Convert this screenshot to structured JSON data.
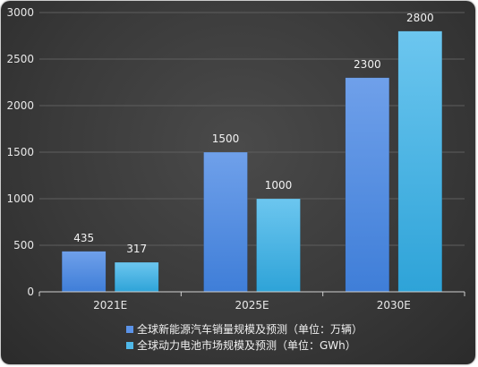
{
  "chart_data": {
    "type": "bar",
    "categories": [
      "2021E",
      "2025E",
      "2030E"
    ],
    "series": [
      {
        "name": "全球新能源汽车销量规模及预测（单位：万辆）",
        "values": [
          435,
          1500,
          2300
        ],
        "color": "#5b93e8"
      },
      {
        "name": "全球动力电池市场规模及预测（单位：GWh）",
        "values": [
          317,
          1000,
          2800
        ],
        "color": "#4fb8e8"
      }
    ],
    "yticks": [
      0,
      500,
      1000,
      1500,
      2000,
      2500,
      3000
    ],
    "ylim": [
      0,
      3000
    ],
    "grid": true,
    "legend_position": "bottom-center",
    "title": "",
    "xlabel": "",
    "ylabel": ""
  }
}
